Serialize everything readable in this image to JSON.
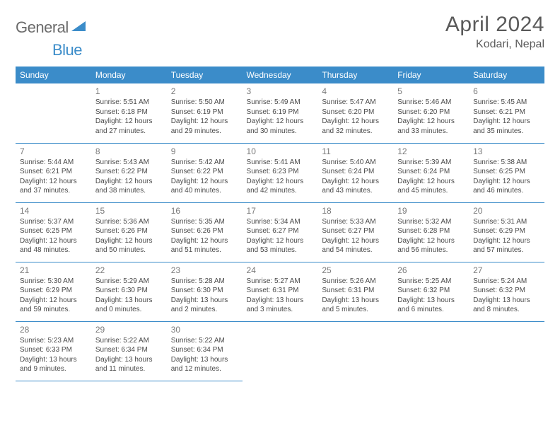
{
  "logo": {
    "text1": "General",
    "text2": "Blue"
  },
  "header": {
    "title": "April 2024",
    "location": "Kodari, Nepal"
  },
  "colors": {
    "accent": "#3b8cc9",
    "text": "#4a4a4a",
    "muted": "#7a7a7a",
    "background": "#ffffff"
  },
  "typography": {
    "title_fontsize": 30,
    "location_fontsize": 16,
    "header_fontsize": 12,
    "cell_fontsize": 10,
    "daynum_fontsize": 12
  },
  "day_headers": [
    "Sunday",
    "Monday",
    "Tuesday",
    "Wednesday",
    "Thursday",
    "Friday",
    "Saturday"
  ],
  "weeks": [
    [
      null,
      {
        "n": "1",
        "sr": "5:51 AM",
        "ss": "6:18 PM",
        "dl": "12 hours and 27 minutes."
      },
      {
        "n": "2",
        "sr": "5:50 AM",
        "ss": "6:19 PM",
        "dl": "12 hours and 29 minutes."
      },
      {
        "n": "3",
        "sr": "5:49 AM",
        "ss": "6:19 PM",
        "dl": "12 hours and 30 minutes."
      },
      {
        "n": "4",
        "sr": "5:47 AM",
        "ss": "6:20 PM",
        "dl": "12 hours and 32 minutes."
      },
      {
        "n": "5",
        "sr": "5:46 AM",
        "ss": "6:20 PM",
        "dl": "12 hours and 33 minutes."
      },
      {
        "n": "6",
        "sr": "5:45 AM",
        "ss": "6:21 PM",
        "dl": "12 hours and 35 minutes."
      }
    ],
    [
      {
        "n": "7",
        "sr": "5:44 AM",
        "ss": "6:21 PM",
        "dl": "12 hours and 37 minutes."
      },
      {
        "n": "8",
        "sr": "5:43 AM",
        "ss": "6:22 PM",
        "dl": "12 hours and 38 minutes."
      },
      {
        "n": "9",
        "sr": "5:42 AM",
        "ss": "6:22 PM",
        "dl": "12 hours and 40 minutes."
      },
      {
        "n": "10",
        "sr": "5:41 AM",
        "ss": "6:23 PM",
        "dl": "12 hours and 42 minutes."
      },
      {
        "n": "11",
        "sr": "5:40 AM",
        "ss": "6:24 PM",
        "dl": "12 hours and 43 minutes."
      },
      {
        "n": "12",
        "sr": "5:39 AM",
        "ss": "6:24 PM",
        "dl": "12 hours and 45 minutes."
      },
      {
        "n": "13",
        "sr": "5:38 AM",
        "ss": "6:25 PM",
        "dl": "12 hours and 46 minutes."
      }
    ],
    [
      {
        "n": "14",
        "sr": "5:37 AM",
        "ss": "6:25 PM",
        "dl": "12 hours and 48 minutes."
      },
      {
        "n": "15",
        "sr": "5:36 AM",
        "ss": "6:26 PM",
        "dl": "12 hours and 50 minutes."
      },
      {
        "n": "16",
        "sr": "5:35 AM",
        "ss": "6:26 PM",
        "dl": "12 hours and 51 minutes."
      },
      {
        "n": "17",
        "sr": "5:34 AM",
        "ss": "6:27 PM",
        "dl": "12 hours and 53 minutes."
      },
      {
        "n": "18",
        "sr": "5:33 AM",
        "ss": "6:27 PM",
        "dl": "12 hours and 54 minutes."
      },
      {
        "n": "19",
        "sr": "5:32 AM",
        "ss": "6:28 PM",
        "dl": "12 hours and 56 minutes."
      },
      {
        "n": "20",
        "sr": "5:31 AM",
        "ss": "6:29 PM",
        "dl": "12 hours and 57 minutes."
      }
    ],
    [
      {
        "n": "21",
        "sr": "5:30 AM",
        "ss": "6:29 PM",
        "dl": "12 hours and 59 minutes."
      },
      {
        "n": "22",
        "sr": "5:29 AM",
        "ss": "6:30 PM",
        "dl": "13 hours and 0 minutes."
      },
      {
        "n": "23",
        "sr": "5:28 AM",
        "ss": "6:30 PM",
        "dl": "13 hours and 2 minutes."
      },
      {
        "n": "24",
        "sr": "5:27 AM",
        "ss": "6:31 PM",
        "dl": "13 hours and 3 minutes."
      },
      {
        "n": "25",
        "sr": "5:26 AM",
        "ss": "6:31 PM",
        "dl": "13 hours and 5 minutes."
      },
      {
        "n": "26",
        "sr": "5:25 AM",
        "ss": "6:32 PM",
        "dl": "13 hours and 6 minutes."
      },
      {
        "n": "27",
        "sr": "5:24 AM",
        "ss": "6:32 PM",
        "dl": "13 hours and 8 minutes."
      }
    ],
    [
      {
        "n": "28",
        "sr": "5:23 AM",
        "ss": "6:33 PM",
        "dl": "13 hours and 9 minutes."
      },
      {
        "n": "29",
        "sr": "5:22 AM",
        "ss": "6:34 PM",
        "dl": "13 hours and 11 minutes."
      },
      {
        "n": "30",
        "sr": "5:22 AM",
        "ss": "6:34 PM",
        "dl": "13 hours and 12 minutes."
      },
      null,
      null,
      null,
      null
    ]
  ],
  "labels": {
    "sunrise": "Sunrise:",
    "sunset": "Sunset:",
    "daylight": "Daylight:"
  }
}
